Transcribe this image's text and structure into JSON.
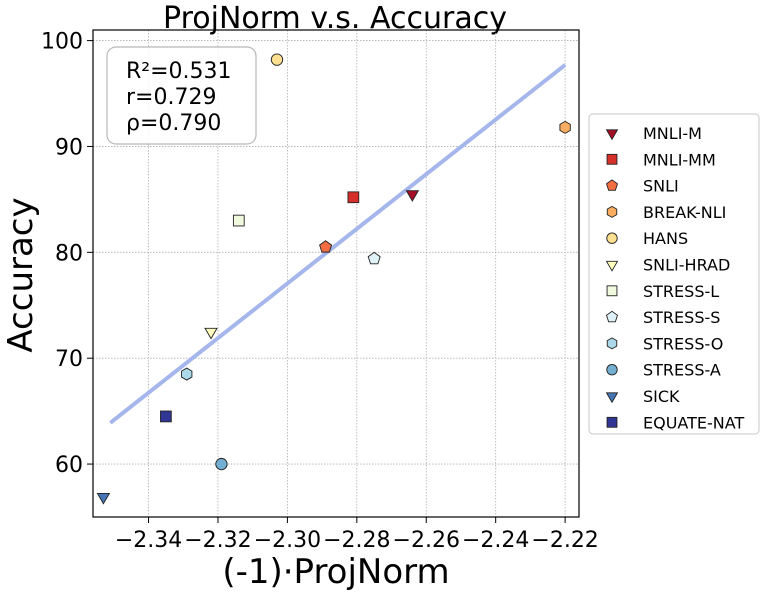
{
  "chart_data": {
    "type": "scatter",
    "title": "ProjNorm  v.s.  Accuracy",
    "xlabel": "(-1)·ProjNorm",
    "ylabel": "Accuracy",
    "xlim": [
      -2.356,
      -2.216
    ],
    "ylim": [
      55,
      101
    ],
    "xticks": [
      -2.34,
      -2.32,
      -2.3,
      -2.28,
      -2.26,
      -2.24,
      -2.22
    ],
    "xtick_labels": [
      "−2.34",
      "−2.32",
      "−2.30",
      "−2.28",
      "−2.26",
      "−2.24",
      "−2.22"
    ],
    "yticks": [
      60,
      70,
      80,
      90,
      100
    ],
    "ytick_labels": [
      "60",
      "70",
      "80",
      "90",
      "100"
    ],
    "grid": true,
    "stats_box": {
      "r2": "R²=0.531",
      "r": "r=0.729",
      "rho": "ρ=0.790"
    },
    "fit_line": {
      "x": [
        -2.351,
        -2.22
      ],
      "y": [
        63.9,
        97.7
      ],
      "color": "#a4b6ec"
    },
    "series": [
      {
        "name": "MNLI-M",
        "x": -2.264,
        "y": 85.5,
        "marker": "triangle-down",
        "color": "#a50f26"
      },
      {
        "name": "MNLI-MM",
        "x": -2.281,
        "y": 85.2,
        "marker": "square",
        "color": "#d7302a"
      },
      {
        "name": "SNLI",
        "x": -2.289,
        "y": 80.5,
        "marker": "pentagon",
        "color": "#f36d43"
      },
      {
        "name": "BREAK-NLI",
        "x": -2.22,
        "y": 91.8,
        "marker": "hexagon",
        "color": "#fbae61"
      },
      {
        "name": "HANS",
        "x": -2.303,
        "y": 98.2,
        "marker": "circle",
        "color": "#fee090"
      },
      {
        "name": "SNLI-HRAD",
        "x": -2.322,
        "y": 72.5,
        "marker": "triangle-down",
        "color": "#fffebf"
      },
      {
        "name": "STRESS-L",
        "x": -2.314,
        "y": 83.0,
        "marker": "square",
        "color": "#f0f8dd"
      },
      {
        "name": "STRESS-S",
        "x": -2.275,
        "y": 79.4,
        "marker": "pentagon",
        "color": "#dff2f8"
      },
      {
        "name": "STRESS-O",
        "x": -2.329,
        "y": 68.5,
        "marker": "hexagon",
        "color": "#abd9e9"
      },
      {
        "name": "STRESS-A",
        "x": -2.319,
        "y": 60.0,
        "marker": "circle",
        "color": "#74aed1"
      },
      {
        "name": "SICK",
        "x": -2.353,
        "y": 56.9,
        "marker": "triangle-down",
        "color": "#4575b4"
      },
      {
        "name": "EQUATE-NAT",
        "x": -2.335,
        "y": 64.5,
        "marker": "square",
        "color": "#313694"
      }
    ]
  }
}
